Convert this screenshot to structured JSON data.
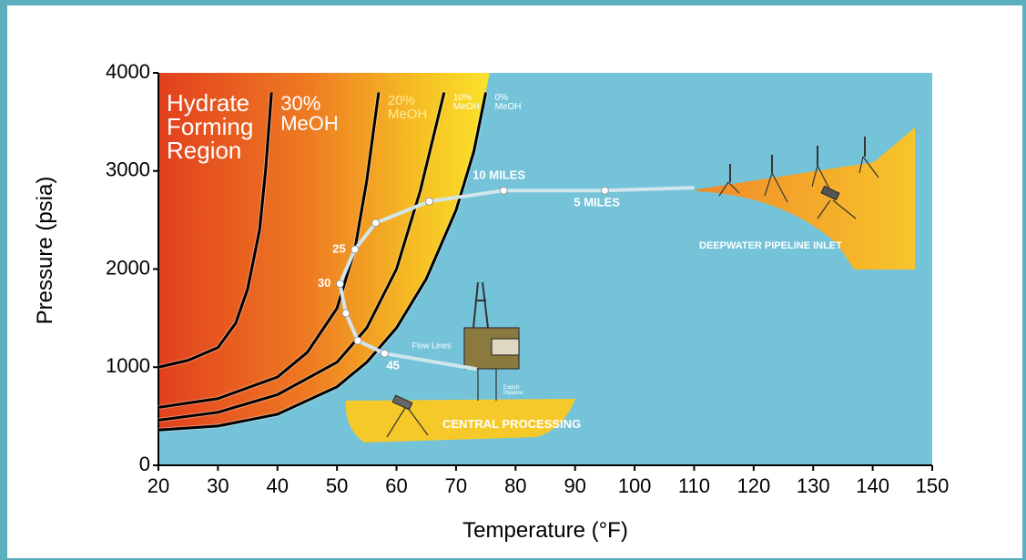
{
  "chart_data": {
    "type": "line",
    "x_label": "Temperature (°F)",
    "y_label": "Pressure (psia)",
    "xlim": [
      20,
      150
    ],
    "ylim": [
      0,
      4000
    ],
    "xticks": [
      20,
      30,
      40,
      50,
      60,
      70,
      80,
      90,
      100,
      110,
      120,
      130,
      140,
      150
    ],
    "yticks": [
      0,
      1000,
      2000,
      3000,
      4000
    ],
    "region_label": "Hydrate Forming Region",
    "series": [
      {
        "name": "30% MeOH",
        "color": "#000000",
        "x": [
          20,
          25,
          30,
          33,
          35,
          37,
          38,
          39
        ],
        "values": [
          1000,
          1070,
          1200,
          1450,
          1800,
          2400,
          3000,
          3800
        ]
      },
      {
        "name": "20% MeOH",
        "color": "#000000",
        "x": [
          20,
          30,
          40,
          45,
          50,
          53,
          55,
          57
        ],
        "values": [
          590,
          680,
          900,
          1150,
          1600,
          2200,
          2900,
          3800
        ]
      },
      {
        "name": "10% MeOH",
        "color": "#000000",
        "x": [
          20,
          30,
          40,
          50,
          55,
          60,
          64,
          68
        ],
        "values": [
          460,
          540,
          720,
          1050,
          1400,
          2000,
          2800,
          3800
        ]
      },
      {
        "name": "0% MeOH",
        "color": "#000000",
        "x": [
          20,
          30,
          40,
          50,
          55,
          60,
          65,
          70,
          73,
          75
        ],
        "values": [
          360,
          400,
          520,
          800,
          1050,
          1400,
          1900,
          2600,
          3200,
          3800
        ]
      }
    ],
    "pipeline": {
      "color": "#cfe6ec",
      "x": [
        110,
        95,
        78,
        65.5,
        56.5,
        53,
        50.5,
        51.5,
        53.5,
        58,
        73.5
      ],
      "values": [
        2830,
        2800,
        2800,
        2690,
        2470,
        2200,
        1850,
        1550,
        1270,
        1140,
        980
      ],
      "labels": [
        null,
        "5 MILES",
        "10 MILES",
        null,
        null,
        "25",
        "30",
        null,
        null,
        "45",
        null
      ]
    },
    "annotations": {
      "deepwater": "DEEPWATER PIPELINE INLET",
      "central": "CENTRAL PROCESSING",
      "flow_lines": "Flow Lines",
      "export": "Export Pipeline"
    }
  }
}
